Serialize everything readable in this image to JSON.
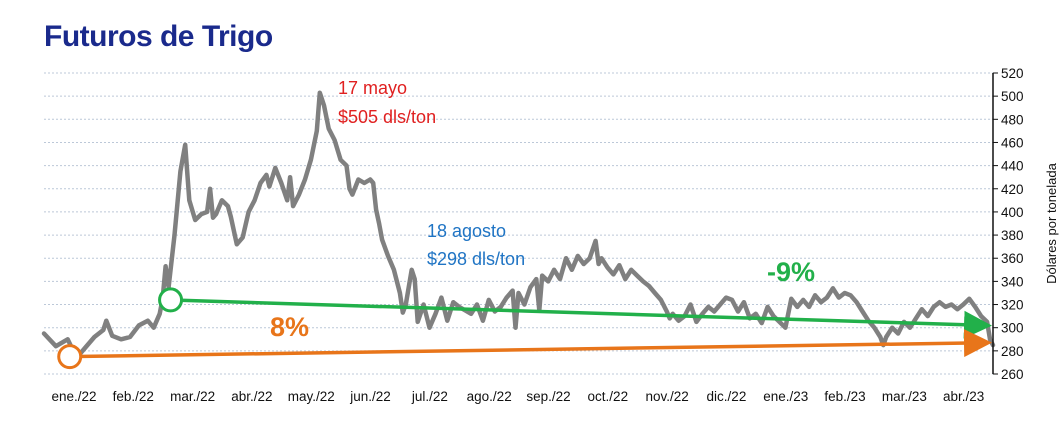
{
  "chart_data": {
    "type": "line",
    "title": "Futuros de Trigo",
    "ylabel": "Dólares por tonelada",
    "ylim": [
      260,
      520
    ],
    "yticks": [
      520,
      500,
      480,
      460,
      440,
      420,
      400,
      380,
      360,
      340,
      320,
      300,
      280,
      260
    ],
    "y_axis_side": "right",
    "grid": true,
    "categories": [
      "ene./22",
      "feb./22",
      "mar./22",
      "abr./22",
      "may./22",
      "jun./22",
      "jul./22",
      "ago./22",
      "sep./22",
      "oct./22",
      "nov./22",
      "dic./22",
      "ene./23",
      "feb./23",
      "mar./23",
      "abr./23"
    ],
    "series": [
      {
        "color": "#808080",
        "points": [
          [
            0.0,
            295
          ],
          [
            0.2,
            284
          ],
          [
            0.4,
            290
          ],
          [
            0.55,
            274
          ],
          [
            0.7,
            283
          ],
          [
            0.85,
            292
          ],
          [
            1.0,
            298
          ],
          [
            1.05,
            306
          ],
          [
            1.15,
            293
          ],
          [
            1.3,
            290
          ],
          [
            1.45,
            292
          ],
          [
            1.6,
            302
          ],
          [
            1.75,
            306
          ],
          [
            1.85,
            300
          ],
          [
            1.95,
            312
          ],
          [
            2.0,
            325
          ],
          [
            2.05,
            353
          ],
          [
            2.1,
            335
          ],
          [
            2.2,
            380
          ],
          [
            2.3,
            435
          ],
          [
            2.38,
            458
          ],
          [
            2.45,
            410
          ],
          [
            2.55,
            393
          ],
          [
            2.65,
            398
          ],
          [
            2.75,
            400
          ],
          [
            2.8,
            420
          ],
          [
            2.85,
            395
          ],
          [
            2.9,
            398
          ],
          [
            3.0,
            410
          ],
          [
            3.1,
            405
          ],
          [
            3.15,
            396
          ],
          [
            3.25,
            372
          ],
          [
            3.35,
            378
          ],
          [
            3.45,
            400
          ],
          [
            3.55,
            410
          ],
          [
            3.65,
            425
          ],
          [
            3.75,
            432
          ],
          [
            3.8,
            422
          ],
          [
            3.9,
            438
          ],
          [
            4.0,
            425
          ],
          [
            4.1,
            410
          ],
          [
            4.15,
            430
          ],
          [
            4.2,
            405
          ],
          [
            4.3,
            415
          ],
          [
            4.4,
            428
          ],
          [
            4.5,
            445
          ],
          [
            4.6,
            470
          ],
          [
            4.65,
            503
          ],
          [
            4.72,
            492
          ],
          [
            4.8,
            472
          ],
          [
            4.9,
            462
          ],
          [
            5.0,
            445
          ],
          [
            5.1,
            440
          ],
          [
            5.15,
            420
          ],
          [
            5.2,
            415
          ],
          [
            5.3,
            428
          ],
          [
            5.4,
            425
          ],
          [
            5.5,
            428
          ],
          [
            5.55,
            425
          ],
          [
            5.6,
            402
          ],
          [
            5.65,
            390
          ],
          [
            5.7,
            376
          ],
          [
            5.8,
            362
          ],
          [
            5.9,
            350
          ],
          [
            6.0,
            330
          ],
          [
            6.05,
            313
          ],
          [
            6.1,
            320
          ],
          [
            6.2,
            350
          ],
          [
            6.25,
            342
          ],
          [
            6.3,
            305
          ],
          [
            6.4,
            320
          ],
          [
            6.5,
            300
          ],
          [
            6.6,
            312
          ],
          [
            6.7,
            326
          ],
          [
            6.8,
            306
          ],
          [
            6.9,
            322
          ],
          [
            7.0,
            318
          ],
          [
            7.1,
            315
          ],
          [
            7.2,
            312
          ],
          [
            7.3,
            320
          ],
          [
            7.4,
            306
          ],
          [
            7.5,
            324
          ],
          [
            7.6,
            314
          ],
          [
            7.7,
            318
          ],
          [
            7.8,
            326
          ],
          [
            7.9,
            332
          ],
          [
            7.95,
            300
          ],
          [
            8.0,
            330
          ],
          [
            8.1,
            320
          ],
          [
            8.2,
            335
          ],
          [
            8.3,
            342
          ],
          [
            8.35,
            315
          ],
          [
            8.4,
            345
          ],
          [
            8.5,
            340
          ],
          [
            8.6,
            350
          ],
          [
            8.7,
            342
          ],
          [
            8.8,
            360
          ],
          [
            8.9,
            350
          ],
          [
            9.0,
            362
          ],
          [
            9.1,
            355
          ],
          [
            9.2,
            360
          ],
          [
            9.3,
            375
          ],
          [
            9.35,
            355
          ],
          [
            9.4,
            360
          ],
          [
            9.5,
            352
          ],
          [
            9.6,
            346
          ],
          [
            9.7,
            354
          ],
          [
            9.8,
            342
          ],
          [
            9.9,
            350
          ],
          [
            10.0,
            345
          ],
          [
            10.1,
            340
          ],
          [
            10.2,
            336
          ],
          [
            10.3,
            330
          ],
          [
            10.4,
            324
          ],
          [
            10.5,
            314
          ],
          [
            10.55,
            308
          ],
          [
            10.6,
            312
          ],
          [
            10.7,
            306
          ],
          [
            10.8,
            310
          ],
          [
            10.9,
            320
          ],
          [
            11.0,
            305
          ],
          [
            11.1,
            312
          ],
          [
            11.2,
            318
          ],
          [
            11.3,
            314
          ],
          [
            11.4,
            320
          ],
          [
            11.5,
            326
          ],
          [
            11.6,
            324
          ],
          [
            11.7,
            314
          ],
          [
            11.8,
            322
          ],
          [
            11.9,
            308
          ],
          [
            12.0,
            312
          ],
          [
            12.1,
            304
          ],
          [
            12.2,
            318
          ],
          [
            12.3,
            310
          ],
          [
            12.4,
            305
          ],
          [
            12.5,
            300
          ],
          [
            12.6,
            325
          ],
          [
            12.7,
            318
          ],
          [
            12.8,
            324
          ],
          [
            12.9,
            318
          ],
          [
            13.0,
            328
          ],
          [
            13.1,
            322
          ],
          [
            13.2,
            326
          ],
          [
            13.3,
            334
          ],
          [
            13.4,
            326
          ],
          [
            13.5,
            330
          ],
          [
            13.6,
            328
          ],
          [
            13.7,
            322
          ],
          [
            13.8,
            314
          ],
          [
            13.9,
            306
          ],
          [
            14.0,
            300
          ],
          [
            14.1,
            292
          ],
          [
            14.15,
            285
          ],
          [
            14.2,
            292
          ],
          [
            14.3,
            300
          ],
          [
            14.4,
            295
          ],
          [
            14.5,
            305
          ],
          [
            14.6,
            300
          ],
          [
            14.7,
            308
          ],
          [
            14.8,
            316
          ],
          [
            14.9,
            310
          ],
          [
            15.0,
            318
          ],
          [
            15.1,
            322
          ],
          [
            15.2,
            318
          ],
          [
            15.3,
            320
          ],
          [
            15.4,
            316
          ],
          [
            15.5,
            320
          ],
          [
            15.6,
            325
          ],
          [
            15.7,
            318
          ],
          [
            15.8,
            310
          ],
          [
            15.9,
            305
          ],
          [
            15.95,
            290
          ],
          [
            16.0,
            285
          ]
        ]
      }
    ],
    "annotations": [
      {
        "line1": "17 mayo",
        "line2": "$505 dls/ton",
        "color": "#e02020"
      },
      {
        "line1": "18 agosto",
        "line2": "$298 dls/ton",
        "color": "#1f74c4"
      },
      {
        "text": "-9%",
        "color": "#22b04a"
      },
      {
        "text": "8%",
        "color": "#e8751a"
      }
    ],
    "trend_lines": [
      {
        "color": "#22b04a",
        "from": [
          2.1,
          324
        ],
        "to": [
          16.0,
          302
        ]
      },
      {
        "color": "#e8751a",
        "from": [
          0.4,
          275
        ],
        "to": [
          16.0,
          287
        ]
      }
    ],
    "markers": [
      {
        "color": "#22b04a",
        "at": [
          2.1,
          324
        ]
      },
      {
        "color": "#e8751a",
        "at": [
          0.4,
          275
        ]
      }
    ],
    "colors": {
      "title": "#1a2a8c",
      "grid": "#bcc8d8",
      "axis": "#111111"
    }
  }
}
